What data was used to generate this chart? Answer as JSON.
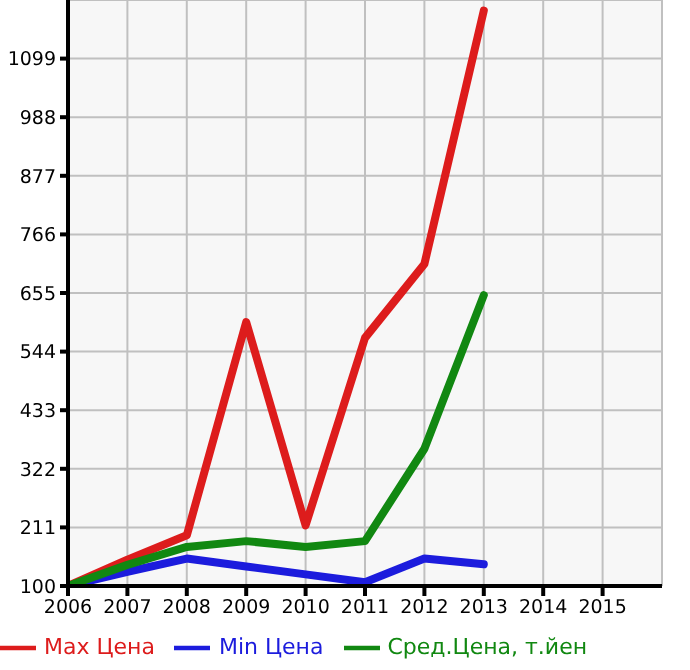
{
  "chart_data": {
    "type": "line",
    "x": [
      2006,
      2007,
      2008,
      2009,
      2010,
      2011,
      2012,
      2013
    ],
    "series": [
      {
        "name": "Max Цена",
        "color": "#dd1c1c",
        "values": [
          100,
          150,
          196,
          600,
          215,
          570,
          710,
          1190
        ]
      },
      {
        "name": "Min Цена",
        "color": "#1c1cdd",
        "values": [
          100,
          127,
          152,
          137,
          122,
          107,
          152,
          141
        ]
      },
      {
        "name": "Сред.Цена, т.йен",
        "color": "#118811",
        "values": [
          100,
          140,
          174,
          185,
          174,
          185,
          360,
          651
        ]
      }
    ],
    "xlim": [
      2006,
      2016
    ],
    "xticks": [
      2006,
      2007,
      2008,
      2009,
      2010,
      2011,
      2012,
      2013,
      2014,
      2015
    ],
    "ylim": [
      100,
      1210
    ],
    "yticks": [
      100,
      211,
      322,
      433,
      544,
      655,
      766,
      877,
      988,
      1099
    ],
    "grid": true,
    "legend": "bottom",
    "marker": "none",
    "line_style": "solid"
  }
}
